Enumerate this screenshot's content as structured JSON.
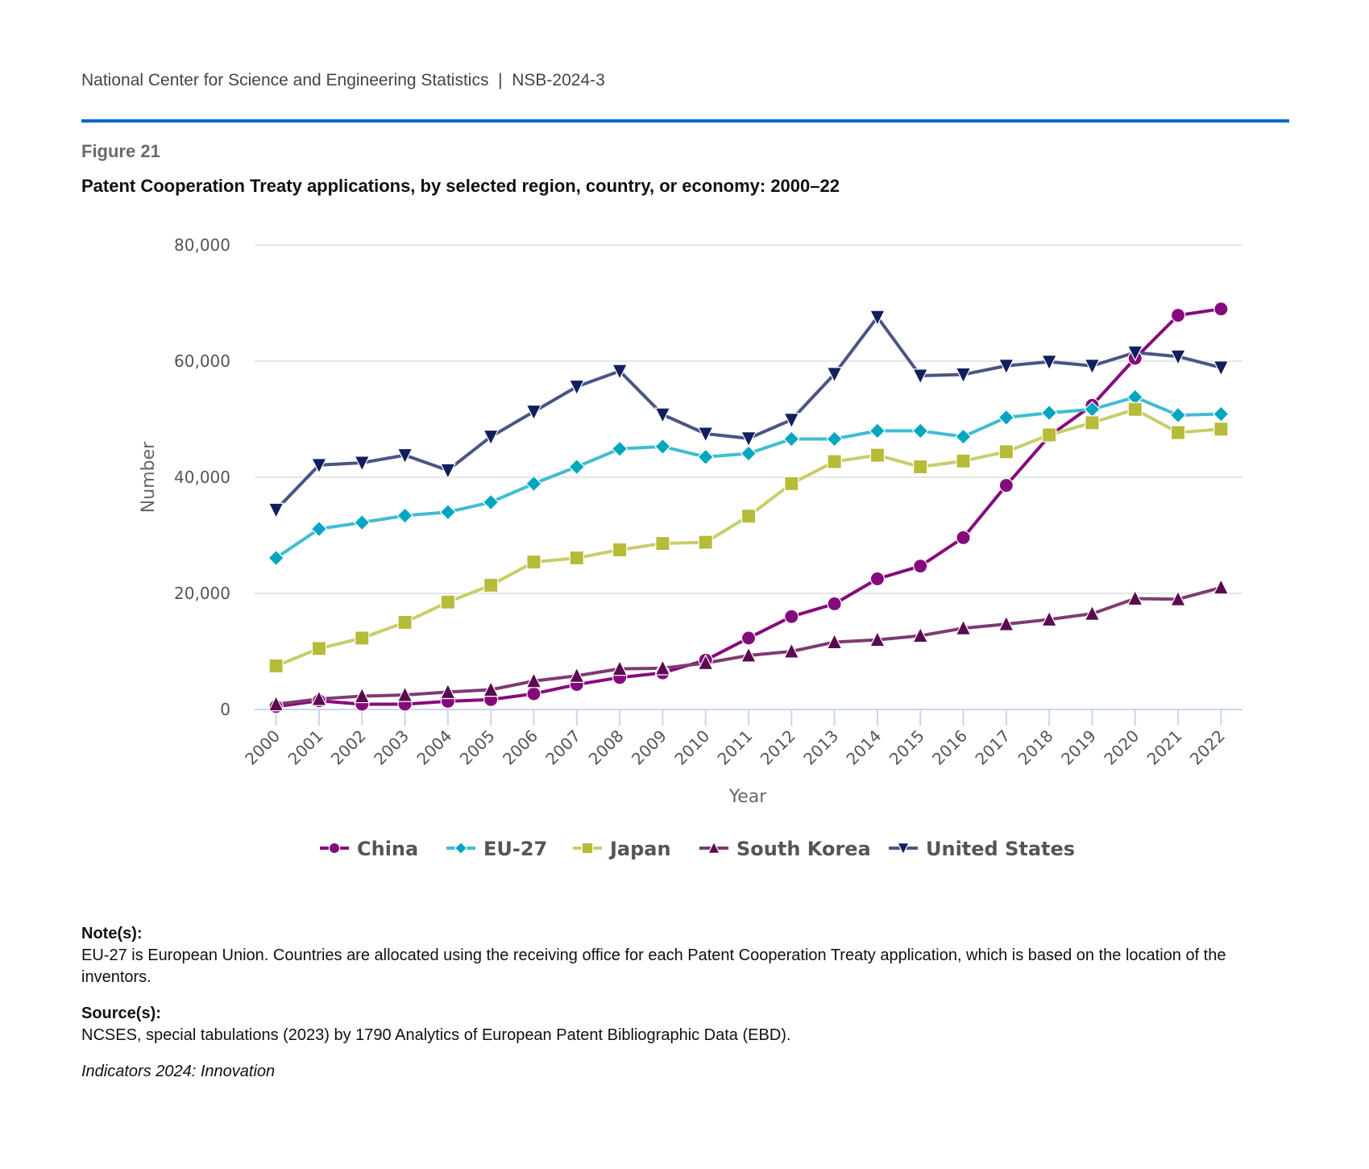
{
  "header": {
    "organization": "National Center for Science and Engineering Statistics  |  NSB-2024-3",
    "figure_label": "Figure 21",
    "figure_title": "Patent Cooperation Treaty applications, by selected region, country, or economy: 2000–22"
  },
  "chart_data": {
    "type": "line",
    "title": "Patent Cooperation Treaty applications, by selected region, country, or economy: 2000–22",
    "xlabel": "Year",
    "ylabel": "Number",
    "ylim": [
      0,
      80000
    ],
    "yticks": [
      0,
      20000,
      40000,
      60000,
      80000
    ],
    "ytick_labels": [
      "0",
      "20,000",
      "40,000",
      "60,000",
      "80,000"
    ],
    "grid": "horizontal",
    "legend_position": "bottom-center",
    "x": [
      "2000",
      "2001",
      "2002",
      "2003",
      "2004",
      "2005",
      "2006",
      "2007",
      "2008",
      "2009",
      "2010",
      "2011",
      "2012",
      "2013",
      "2014",
      "2015",
      "2016",
      "2017",
      "2018",
      "2019",
      "2020",
      "2021",
      "2022"
    ],
    "series": [
      {
        "name": "China",
        "marker": "circle",
        "line_color": "#870A7C",
        "marker_color": "#870A7C",
        "values": [
          500,
          1500,
          900,
          900,
          1400,
          1700,
          2700,
          4300,
          5500,
          6300,
          8500,
          12300,
          16000,
          18200,
          22500,
          24700,
          29600,
          38600,
          47100,
          52400,
          60500,
          67900,
          69000
        ]
      },
      {
        "name": "EU-27",
        "marker": "diamond",
        "line_color": "#3EBDD2",
        "marker_color": "#00A6C0",
        "values": [
          26100,
          31100,
          32200,
          33400,
          34000,
          35700,
          38900,
          41800,
          44900,
          45300,
          43500,
          44100,
          46600,
          46600,
          48000,
          48000,
          47000,
          50300,
          51100,
          51700,
          53800,
          50700,
          50900
        ]
      },
      {
        "name": "Japan",
        "marker": "square",
        "line_color": "#C8CD6A",
        "marker_color": "#B6BB38",
        "values": [
          7500,
          10500,
          12300,
          15000,
          18500,
          21400,
          25400,
          26100,
          27500,
          28600,
          28800,
          33300,
          38900,
          42700,
          43800,
          41800,
          42800,
          44400,
          47300,
          49400,
          51700,
          47700,
          48300
        ]
      },
      {
        "name": "South Korea",
        "marker": "triangle-up",
        "line_color": "#7E3B73",
        "marker_color": "#5C0A4F",
        "values": [
          900,
          1800,
          2300,
          2500,
          3000,
          3400,
          4900,
          5800,
          7000,
          7100,
          8000,
          9300,
          10000,
          11600,
          12000,
          12700,
          14000,
          14700,
          15500,
          16500,
          19100,
          19000,
          21000
        ]
      },
      {
        "name": "United States",
        "marker": "triangle-down",
        "line_color": "#4A5585",
        "marker_color": "#121F5E",
        "values": [
          34400,
          42100,
          42500,
          43800,
          41200,
          47000,
          51300,
          55600,
          58300,
          50800,
          47500,
          46700,
          49900,
          57800,
          67600,
          57500,
          57700,
          59200,
          59900,
          59200,
          61500,
          60800,
          58900
        ]
      }
    ]
  },
  "footer": {
    "notes_label": "Note(s):",
    "notes_text": "EU-27 is European Union. Countries are allocated using the receiving office for each Patent Cooperation Treaty application, which is based on the location of the inventors.",
    "sources_label": "Source(s):",
    "sources_text": "NCSES, special tabulations (2023) by 1790 Analytics of European Patent Bibliographic Data (EBD).",
    "publication": "Indicators 2024: Innovation"
  }
}
